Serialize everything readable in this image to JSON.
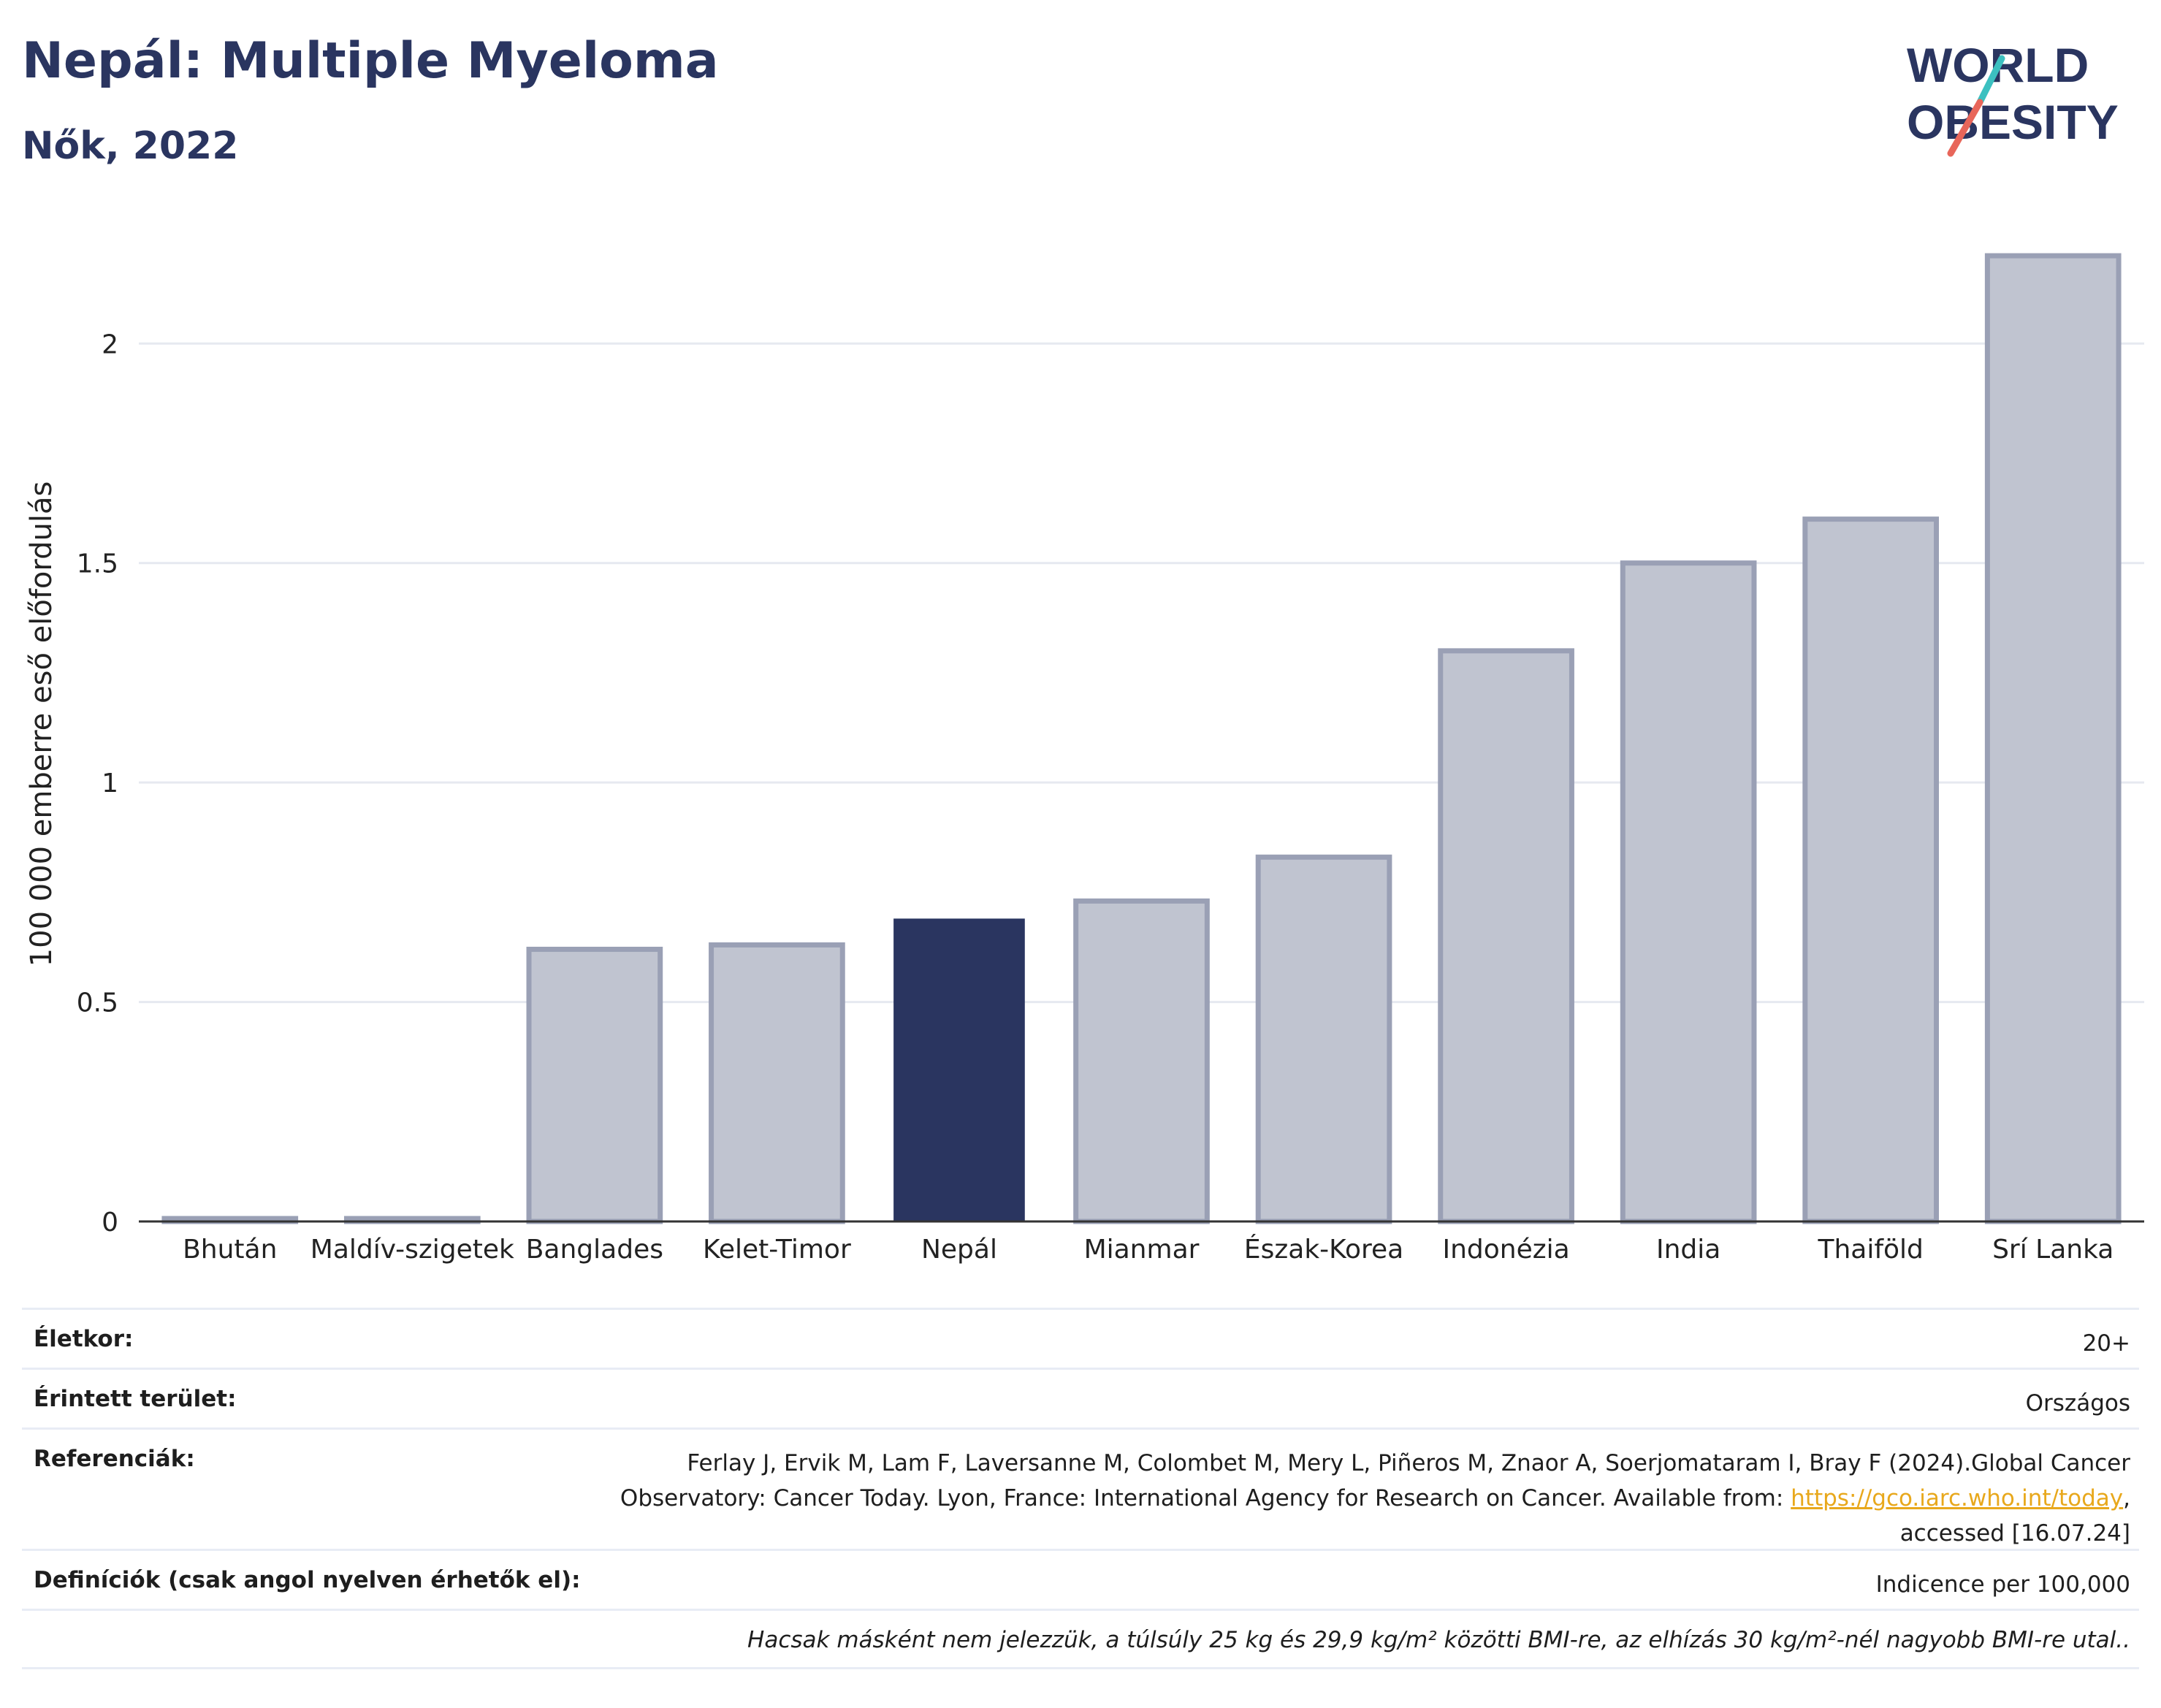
{
  "header": {
    "title": "Nepál: Multiple Myeloma",
    "subtitle": "Nők, 2022",
    "logo_line1": "WORLD",
    "logo_line2": "OBESITY"
  },
  "colors": {
    "highlight": "#2a3560",
    "other": "#c0c4d0",
    "other_stroke": "#9aa0b5",
    "title": "#2a3560",
    "logo_teal": "#3cc0c0",
    "logo_red": "#e8665a"
  },
  "chart_data": {
    "type": "bar",
    "title": "Nepál: Multiple Myeloma",
    "subtitle": "Nők, 2022",
    "ylabel": "100 000 emberre eső előfordulás",
    "xlabel": "",
    "categories": [
      "Bhután",
      "Maldív-szigetek",
      "Banglades",
      "Kelet-Timor",
      "Nepál",
      "Mianmar",
      "Észak-Korea",
      "Indonézia",
      "India",
      "Thaiföld",
      "Srí Lanka"
    ],
    "values": [
      0.0,
      0.0,
      0.62,
      0.63,
      0.69,
      0.73,
      0.83,
      1.3,
      1.5,
      1.6,
      2.2
    ],
    "highlight": "Nepál",
    "yticks": [
      0,
      0.5,
      1,
      1.5,
      2
    ],
    "ytick_labels": [
      "0",
      "0.5",
      "1",
      "1.5",
      "2"
    ],
    "ylim": [
      0,
      2.3
    ],
    "grid": true,
    "legend": false
  },
  "info": {
    "age_label": "Életkor:",
    "age_value": "20+",
    "area_label": "Érintett terület:",
    "area_value": "Országos",
    "refs_label": "Referenciák:",
    "refs_text_1": "Ferlay J, Ervik M, Lam F, Laversanne M, Colombet M, Mery L, Piñeros M, Znaor A, Soerjomataram I, Bray F (2024).Global Cancer",
    "refs_text_2": "Observatory: Cancer Today. Lyon, France: International Agency for Research on Cancer. Available from: ",
    "refs_link": "https://gco.iarc.who.int/today",
    "refs_text_3": ",",
    "refs_text_4": "accessed [16.07.24]",
    "defs_label": "Definíciók (csak angol nyelven érhetők el):",
    "defs_value": "Indicence per 100,000",
    "footnote": "Hacsak másként nem jelezzük, a túlsúly 25 kg és 29,9 kg/m² közötti BMI-re, az elhízás 30 kg/m²-nél nagyobb BMI-re utal.."
  }
}
